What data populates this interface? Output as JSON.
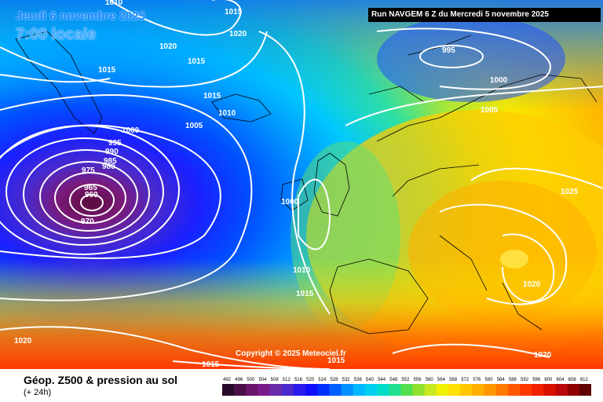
{
  "header": {
    "date": "Jeudi 6 novembre 2025",
    "time": "7:00 locale",
    "run": "Run NAVGEM 6 Z du Mercredi 5 novembre 2025"
  },
  "map": {
    "copyright": "Copyright © 2025 Meteociel.fr",
    "isobar_labels": [
      "1010",
      "1015",
      "1015",
      "1020",
      "1020",
      "1015",
      "995",
      "1000",
      "1015",
      "1010",
      "1005",
      "1000",
      "995",
      "990",
      "985",
      "980",
      "975",
      "965",
      "960",
      "970",
      "1005",
      "1000",
      "1025",
      "1010",
      "1015",
      "1020",
      "1020",
      "1015",
      "1020",
      "1015"
    ]
  },
  "legend": {
    "title": "Géop. Z500 & pression au sol",
    "subtitle": "(+ 24h)",
    "scale_values": [
      "492",
      "496",
      "500",
      "504",
      "508",
      "512",
      "516",
      "520",
      "524",
      "528",
      "532",
      "536",
      "540",
      "544",
      "548",
      "552",
      "556",
      "560",
      "564",
      "568",
      "572",
      "576",
      "580",
      "584",
      "588",
      "592",
      "596",
      "600",
      "604",
      "608",
      "612"
    ],
    "scale_colors": [
      "#2a0a2a",
      "#4a0f4a",
      "#6a146a",
      "#7a1a8a",
      "#6a2aaa",
      "#4a2acc",
      "#2a1aee",
      "#1010ff",
      "#0030ff",
      "#0060ff",
      "#0090ff",
      "#00b8ff",
      "#00d0f0",
      "#00dcc8",
      "#20e090",
      "#50e050",
      "#90e030",
      "#c8e820",
      "#f0f000",
      "#ffe000",
      "#ffc800",
      "#ffb000",
      "#ff9800",
      "#ff7800",
      "#ff5800",
      "#ff3800",
      "#f02000",
      "#d81000",
      "#b80808",
      "#900000",
      "#600000"
    ]
  }
}
